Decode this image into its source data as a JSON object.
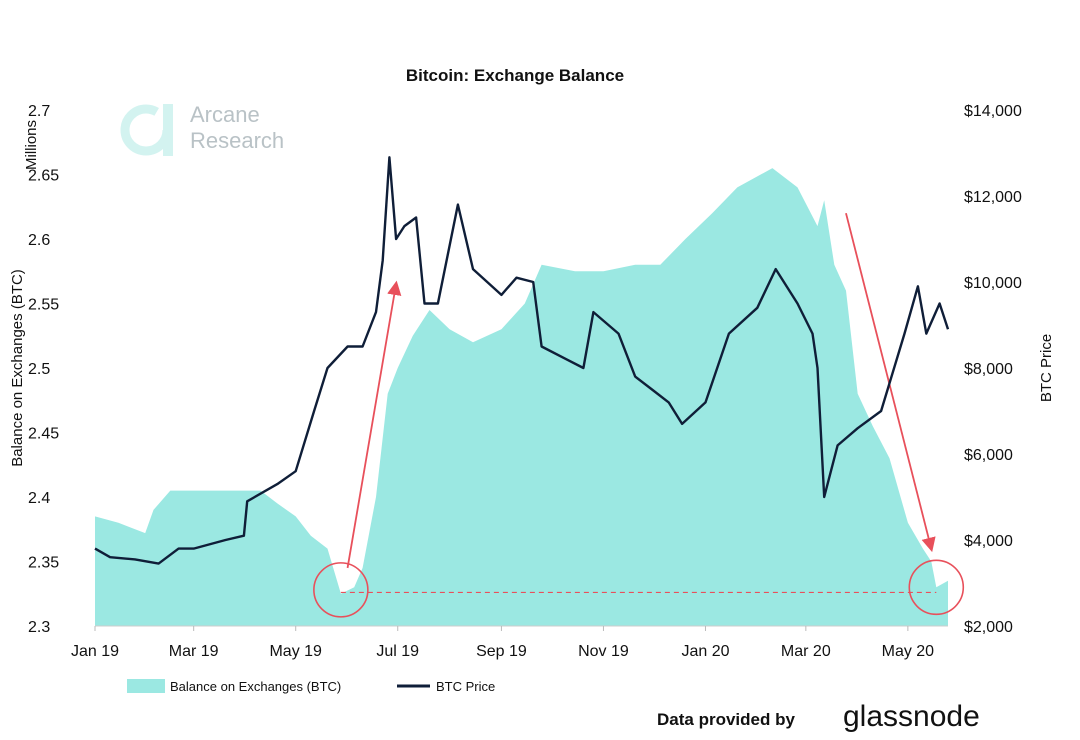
{
  "chart_data": {
    "type": "area+line",
    "title": "Bitcoin: Exchange Balance",
    "x_ticks": [
      "Jan 19",
      "Mar 19",
      "May 19",
      "Jul 19",
      "Sep 19",
      "Nov 19",
      "Jan 20",
      "Mar 20",
      "May 20"
    ],
    "x_tick_dates": [
      "2019-01-01",
      "2019-03-01",
      "2019-05-01",
      "2019-07-01",
      "2019-09-01",
      "2019-11-01",
      "2020-01-01",
      "2020-03-01",
      "2020-05-01"
    ],
    "xlim": [
      "2019-01-01",
      "2020-05-25"
    ],
    "left_axis": {
      "label": "Balance on Exchanges (BTC)",
      "unit_label": "Millions",
      "ylim": [
        2.3,
        2.7
      ],
      "ticks": [
        "2.3",
        "2.35",
        "2.4",
        "2.45",
        "2.5",
        "2.55",
        "2.6",
        "2.65",
        "2.7"
      ]
    },
    "right_axis": {
      "label": "BTC Price",
      "ylim": [
        2000,
        14000
      ],
      "ticks": [
        "$2,000",
        "$4,000",
        "$6,000",
        "$8,000",
        "$10,000",
        "$12,000",
        "$14,000"
      ]
    },
    "series": [
      {
        "name": "Balance on Exchanges (BTC)",
        "type": "area",
        "axis": "left",
        "color": "#9be8e2",
        "points": [
          [
            "2019-01-01",
            2.385
          ],
          [
            "2019-01-15",
            2.38
          ],
          [
            "2019-01-31",
            2.372
          ],
          [
            "2019-02-05",
            2.39
          ],
          [
            "2019-02-15",
            2.405
          ],
          [
            "2019-03-01",
            2.405
          ],
          [
            "2019-03-20",
            2.405
          ],
          [
            "2019-04-10",
            2.405
          ],
          [
            "2019-04-20",
            2.395
          ],
          [
            "2019-05-01",
            2.385
          ],
          [
            "2019-05-10",
            2.37
          ],
          [
            "2019-05-20",
            2.36
          ],
          [
            "2019-05-28",
            2.325
          ],
          [
            "2019-06-05",
            2.33
          ],
          [
            "2019-06-10",
            2.345
          ],
          [
            "2019-06-18",
            2.4
          ],
          [
            "2019-06-25",
            2.48
          ],
          [
            "2019-07-01",
            2.5
          ],
          [
            "2019-07-10",
            2.525
          ],
          [
            "2019-07-20",
            2.545
          ],
          [
            "2019-08-01",
            2.53
          ],
          [
            "2019-08-15",
            2.52
          ],
          [
            "2019-09-01",
            2.53
          ],
          [
            "2019-09-15",
            2.55
          ],
          [
            "2019-09-25",
            2.58
          ],
          [
            "2019-10-15",
            2.575
          ],
          [
            "2019-11-01",
            2.575
          ],
          [
            "2019-11-20",
            2.58
          ],
          [
            "2019-12-05",
            2.58
          ],
          [
            "2019-12-20",
            2.6
          ],
          [
            "2020-01-05",
            2.62
          ],
          [
            "2020-01-20",
            2.64
          ],
          [
            "2020-02-10",
            2.655
          ],
          [
            "2020-02-25",
            2.64
          ],
          [
            "2020-03-08",
            2.61
          ],
          [
            "2020-03-12",
            2.63
          ],
          [
            "2020-03-18",
            2.58
          ],
          [
            "2020-03-25",
            2.56
          ],
          [
            "2020-04-01",
            2.48
          ],
          [
            "2020-04-10",
            2.455
          ],
          [
            "2020-04-20",
            2.43
          ],
          [
            "2020-05-01",
            2.38
          ],
          [
            "2020-05-10",
            2.36
          ],
          [
            "2020-05-15",
            2.35
          ],
          [
            "2020-05-18",
            2.33
          ],
          [
            "2020-05-25",
            2.335
          ]
        ]
      },
      {
        "name": "BTC Price",
        "type": "line",
        "axis": "right",
        "color": "#0f1e38",
        "points": [
          [
            "2019-01-01",
            3800
          ],
          [
            "2019-01-10",
            3600
          ],
          [
            "2019-01-25",
            3550
          ],
          [
            "2019-02-08",
            3450
          ],
          [
            "2019-02-20",
            3800
          ],
          [
            "2019-03-01",
            3800
          ],
          [
            "2019-03-20",
            4000
          ],
          [
            "2019-03-31",
            4100
          ],
          [
            "2019-04-02",
            4900
          ],
          [
            "2019-04-20",
            5300
          ],
          [
            "2019-05-01",
            5600
          ],
          [
            "2019-05-12",
            7000
          ],
          [
            "2019-05-20",
            8000
          ],
          [
            "2019-06-01",
            8500
          ],
          [
            "2019-06-10",
            8500
          ],
          [
            "2019-06-18",
            9300
          ],
          [
            "2019-06-22",
            10500
          ],
          [
            "2019-06-26",
            12900
          ],
          [
            "2019-06-30",
            11000
          ],
          [
            "2019-07-05",
            11300
          ],
          [
            "2019-07-12",
            11500
          ],
          [
            "2019-07-17",
            9500
          ],
          [
            "2019-07-25",
            9500
          ],
          [
            "2019-08-06",
            11800
          ],
          [
            "2019-08-15",
            10300
          ],
          [
            "2019-09-01",
            9700
          ],
          [
            "2019-09-10",
            10100
          ],
          [
            "2019-09-20",
            10000
          ],
          [
            "2019-09-25",
            8500
          ],
          [
            "2019-10-10",
            8200
          ],
          [
            "2019-10-20",
            8000
          ],
          [
            "2019-10-26",
            9300
          ],
          [
            "2019-11-10",
            8800
          ],
          [
            "2019-11-20",
            7800
          ],
          [
            "2019-11-30",
            7500
          ],
          [
            "2019-12-10",
            7200
          ],
          [
            "2019-12-18",
            6700
          ],
          [
            "2020-01-01",
            7200
          ],
          [
            "2020-01-15",
            8800
          ],
          [
            "2020-02-01",
            9400
          ],
          [
            "2020-02-12",
            10300
          ],
          [
            "2020-02-25",
            9500
          ],
          [
            "2020-03-05",
            8800
          ],
          [
            "2020-03-08",
            8000
          ],
          [
            "2020-03-12",
            5000
          ],
          [
            "2020-03-20",
            6200
          ],
          [
            "2020-04-01",
            6600
          ],
          [
            "2020-04-15",
            7000
          ],
          [
            "2020-04-29",
            8800
          ],
          [
            "2020-05-07",
            9900
          ],
          [
            "2020-05-12",
            8800
          ],
          [
            "2020-05-20",
            9500
          ],
          [
            "2020-05-25",
            8900
          ]
        ]
      }
    ],
    "annotations": [
      {
        "type": "circle",
        "date": "2019-05-28",
        "value": 2.328
      },
      {
        "type": "circle",
        "date": "2020-05-18",
        "value": 2.33
      },
      {
        "type": "dashed-hline",
        "value": 2.326,
        "from": "2019-05-28",
        "to": "2020-05-18"
      },
      {
        "type": "arrow",
        "from": [
          "2019-06-01",
          2.345
        ],
        "to": [
          "2019-06-30",
          2.565
        ]
      },
      {
        "type": "arrow",
        "from": [
          "2020-03-25",
          2.62
        ],
        "to": [
          "2020-05-15",
          2.36
        ]
      }
    ],
    "grid": false,
    "legend_placement": "bottom-left"
  },
  "watermark": {
    "line1": "Arcane",
    "line2": "Research"
  },
  "footer": {
    "credit_label": "Data provided by",
    "brand": "glassnode"
  },
  "colors": {
    "area": "#9be8e2",
    "line": "#0f1e38",
    "annotation": "#e8505b"
  }
}
